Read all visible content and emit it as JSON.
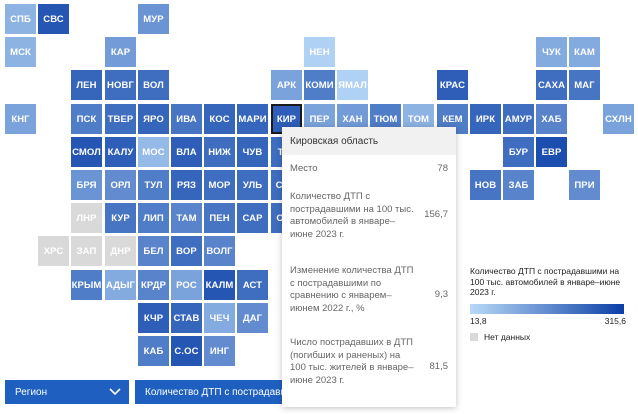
{
  "chart_data": {
    "type": "heatmap",
    "cells": [
      {
        "label": "СПБ",
        "col": 0,
        "row": 0,
        "shade": 0.25
      },
      {
        "label": "СВС",
        "col": 1,
        "row": 0,
        "shade": 0.85
      },
      {
        "label": "МУР",
        "col": 4,
        "row": 0,
        "shade": 0.45
      },
      {
        "label": "МСК",
        "col": 0,
        "row": 1,
        "shade": 0.25
      },
      {
        "label": "КАР",
        "col": 3,
        "row": 1,
        "shade": 0.4
      },
      {
        "label": "НЕН",
        "col": 9,
        "row": 1,
        "shade": 0.05
      },
      {
        "label": "ЧУК",
        "col": 16,
        "row": 1,
        "shade": 0.3
      },
      {
        "label": "КАМ",
        "col": 17,
        "row": 1,
        "shade": 0.3
      },
      {
        "label": "ЛЕН",
        "col": 2,
        "row": 2,
        "shade": 0.75
      },
      {
        "label": "НОВГ",
        "col": 3,
        "row": 2,
        "shade": 0.7
      },
      {
        "label": "ВОЛ",
        "col": 4,
        "row": 2,
        "shade": 0.7
      },
      {
        "label": "АРК",
        "col": 8,
        "row": 2,
        "shade": 0.35
      },
      {
        "label": "КОМИ",
        "col": 9,
        "row": 2,
        "shade": 0.6
      },
      {
        "label": "ЯМАЛ",
        "col": 10,
        "row": 2,
        "shade": 0.05
      },
      {
        "label": "КРАС",
        "col": 13,
        "row": 2,
        "shade": 0.8
      },
      {
        "label": "САХА",
        "col": 16,
        "row": 2,
        "shade": 0.7
      },
      {
        "label": "МАГ",
        "col": 17,
        "row": 2,
        "shade": 0.65
      },
      {
        "label": "КНГ",
        "col": 0,
        "row": 3,
        "shade": 0.35
      },
      {
        "label": "ПСК",
        "col": 2,
        "row": 3,
        "shade": 0.6
      },
      {
        "label": "ТВЕР",
        "col": 3,
        "row": 3,
        "shade": 0.7
      },
      {
        "label": "ЯРО",
        "col": 4,
        "row": 3,
        "shade": 0.75
      },
      {
        "label": "ИВА",
        "col": 5,
        "row": 3,
        "shade": 0.65
      },
      {
        "label": "КОС",
        "col": 6,
        "row": 3,
        "shade": 0.75
      },
      {
        "label": "МАРИ",
        "col": 7,
        "row": 3,
        "shade": 0.75
      },
      {
        "label": "КИР",
        "col": 8,
        "row": 3,
        "shade": 0.8
      },
      {
        "label": "ПЕР",
        "col": 9,
        "row": 3,
        "shade": 0.35
      },
      {
        "label": "ХАН",
        "col": 10,
        "row": 3,
        "shade": 0.4
      },
      {
        "label": "ТЮМ",
        "col": 11,
        "row": 3,
        "shade": 0.6
      },
      {
        "label": "ТОМ",
        "col": 12,
        "row": 3,
        "shade": 0.25
      },
      {
        "label": "КЕМ",
        "col": 13,
        "row": 3,
        "shade": 0.6
      },
      {
        "label": "ИРК",
        "col": 14,
        "row": 3,
        "shade": 0.75
      },
      {
        "label": "АМУР",
        "col": 15,
        "row": 3,
        "shade": 0.7
      },
      {
        "label": "ХАБ",
        "col": 16,
        "row": 3,
        "shade": 0.55
      },
      {
        "label": "СХЛН",
        "col": 18,
        "row": 3,
        "shade": 0.35
      },
      {
        "label": "СМОЛ",
        "col": 2,
        "row": 4,
        "shade": 0.85
      },
      {
        "label": "КАЛУ",
        "col": 3,
        "row": 4,
        "shade": 0.8
      },
      {
        "label": "МОС",
        "col": 4,
        "row": 4,
        "shade": 0.2
      },
      {
        "label": "ВЛА",
        "col": 5,
        "row": 4,
        "shade": 0.8
      },
      {
        "label": "НИЖ",
        "col": 6,
        "row": 4,
        "shade": 0.7
      },
      {
        "label": "ЧУВ",
        "col": 7,
        "row": 4,
        "shade": 0.75
      },
      {
        "label": "ТАТ",
        "col": 8,
        "row": 4,
        "shade": 0.7
      },
      {
        "label": "БУР",
        "col": 15,
        "row": 4,
        "shade": 0.7
      },
      {
        "label": "ЕВР",
        "col": 16,
        "row": 4,
        "shade": 0.9
      },
      {
        "label": "БРЯ",
        "col": 2,
        "row": 5,
        "shade": 0.45
      },
      {
        "label": "ОРЛ",
        "col": 3,
        "row": 5,
        "shade": 0.5
      },
      {
        "label": "ТУЛ",
        "col": 4,
        "row": 5,
        "shade": 0.6
      },
      {
        "label": "РЯЗ",
        "col": 5,
        "row": 5,
        "shade": 0.75
      },
      {
        "label": "МОР",
        "col": 6,
        "row": 5,
        "shade": 0.7
      },
      {
        "label": "УЛЬ",
        "col": 7,
        "row": 5,
        "shade": 0.7
      },
      {
        "label": "САМ",
        "col": 8,
        "row": 5,
        "shade": 0.7
      },
      {
        "label": "НОВ",
        "col": 14,
        "row": 5,
        "shade": 0.65
      },
      {
        "label": "ЗАБ",
        "col": 15,
        "row": 5,
        "shade": 0.55
      },
      {
        "label": "ПРИ",
        "col": 17,
        "row": 5,
        "shade": 0.5
      },
      {
        "label": "ЛНР",
        "col": 2,
        "row": 6,
        "shade": -1
      },
      {
        "label": "КУР",
        "col": 3,
        "row": 6,
        "shade": 0.65
      },
      {
        "label": "ЛИП",
        "col": 4,
        "row": 6,
        "shade": 0.6
      },
      {
        "label": "ТАМ",
        "col": 5,
        "row": 6,
        "shade": 0.55
      },
      {
        "label": "ПЕН",
        "col": 6,
        "row": 6,
        "shade": 0.65
      },
      {
        "label": "САР",
        "col": 7,
        "row": 6,
        "shade": 0.7
      },
      {
        "label": "ОРЕ",
        "col": 8,
        "row": 6,
        "shade": 0.7
      },
      {
        "label": "ХРС",
        "col": 1,
        "row": 7,
        "shade": -1
      },
      {
        "label": "ЗАП",
        "col": 2,
        "row": 7,
        "shade": -1
      },
      {
        "label": "ДНР",
        "col": 3,
        "row": 7,
        "shade": -1
      },
      {
        "label": "БЕЛ",
        "col": 4,
        "row": 7,
        "shade": 0.55
      },
      {
        "label": "ВОР",
        "col": 5,
        "row": 7,
        "shade": 0.7
      },
      {
        "label": "ВОЛГ",
        "col": 6,
        "row": 7,
        "shade": 0.55
      },
      {
        "label": "КРЫМ",
        "col": 2,
        "row": 8,
        "shade": 0.6
      },
      {
        "label": "АДЫГ",
        "col": 3,
        "row": 8,
        "shade": 0.3
      },
      {
        "label": "КРДР",
        "col": 4,
        "row": 8,
        "shade": 0.55
      },
      {
        "label": "РОС",
        "col": 5,
        "row": 8,
        "shade": 0.35
      },
      {
        "label": "КАЛМ",
        "col": 6,
        "row": 8,
        "shade": 0.85
      },
      {
        "label": "АСТ",
        "col": 7,
        "row": 8,
        "shade": 0.7
      },
      {
        "label": "КЧР",
        "col": 4,
        "row": 9,
        "shade": 0.8
      },
      {
        "label": "СТАВ",
        "col": 5,
        "row": 9,
        "shade": 0.75
      },
      {
        "label": "ЧЕЧ",
        "col": 6,
        "row": 9,
        "shade": 0.3
      },
      {
        "label": "ДАГ",
        "col": 7,
        "row": 9,
        "shade": 0.5
      },
      {
        "label": "КАБ",
        "col": 4,
        "row": 10,
        "shade": 0.6
      },
      {
        "label": "С.ОС",
        "col": 5,
        "row": 10,
        "shade": 0.85
      },
      {
        "label": "ИНГ",
        "col": 6,
        "row": 10,
        "shade": 0.5
      }
    ],
    "selected": "КИР"
  },
  "tooltip": {
    "region": "Кировская область",
    "rows": [
      {
        "label": "Место",
        "value": "78"
      },
      {
        "label": "Количество ДТП с пострадавшими на 100 тыс. автомобилей в январе–июне 2023 г.",
        "value": "156,7"
      },
      {
        "label": "Изменение количества ДТП с пострадавшими по сравнению с январем–июнем 2022 г., %",
        "value": "9,3"
      },
      {
        "label": "Число пострадавших в ДТП (погибших и раненых) на 100 тыс. жителей в январе–июне 2023 г.",
        "value": "81,5"
      }
    ]
  },
  "controls": {
    "region_dropdown": "Регион",
    "metric_dropdown": "Количество ДТП с пострадавшими"
  },
  "legend": {
    "title": "Количество ДТП с пострадавшими на 100 тыс. автомобилей в январе–июне 2023 г.",
    "min": "13,8",
    "max": "315,6",
    "nodata": "Нет данных"
  },
  "colors": {
    "light": "#b8d9f7",
    "dark": "#0b3fa7",
    "nodata": "#d9d9d9",
    "dropdown": "#1f5fbf"
  }
}
